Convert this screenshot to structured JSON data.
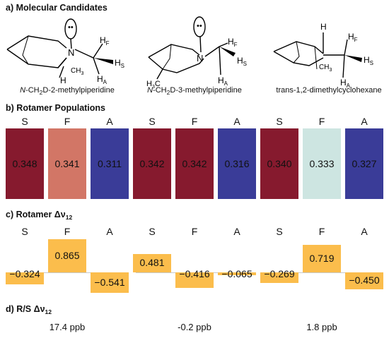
{
  "sections": {
    "a_prefix": "a)",
    "a_title": "Molecular Candidates",
    "b_prefix": "b)",
    "b_title": "Rotamer Populations",
    "c_prefix": "c)",
    "c_title_main": "Rotamer Δν",
    "c_title_sub": "12",
    "d_prefix": "d)",
    "d_title_main": "R/S Δν",
    "d_title_sub": "12"
  },
  "candidates": [
    {
      "label_prefix": "N",
      "label_rest": "-CH",
      "sub": "2",
      "label_tail": "D-2-methylpiperidine",
      "atoms": {
        "n": "N",
        "lone_pair": "••",
        "hf": "H",
        "hf_sub": "F",
        "hs": "H",
        "hs_sub": "S",
        "ha": "H",
        "ha_sub": "A",
        "h": "H",
        "ch3": "CH",
        "ch3_sub": "3"
      }
    },
    {
      "label_prefix": "N",
      "label_rest": "-CH",
      "sub": "2",
      "label_tail": "D-3-methylpiperidine",
      "atoms": {
        "n": "N",
        "lone_pair": "••",
        "hf": "H",
        "hf_sub": "F",
        "hs": "H",
        "hs_sub": "S",
        "ha": "H",
        "ha_sub": "A",
        "h3c": "H",
        "h3c_sub": "3",
        "h3c_tail": "C"
      }
    },
    {
      "label_full": "trans-1,2-dimethylcyclohexane",
      "atoms": {
        "h": "H",
        "hf": "H",
        "hf_sub": "F",
        "hs": "H",
        "hs_sub": "S",
        "ha": "H",
        "ha_sub": "A",
        "ch3": "CH",
        "ch3_sub": "3"
      }
    }
  ],
  "rotamer_letters": [
    "S",
    "F",
    "A"
  ],
  "colors": {
    "high": "#861a2e",
    "mid": "#d27666",
    "low": "#3a3c98",
    "pale": "#cde5e1",
    "dv_bar": "#fbbd4c"
  },
  "populations": [
    {
      "bars": [
        {
          "rotamer": "S",
          "value": "0.348",
          "color": "#861a2e"
        },
        {
          "rotamer": "F",
          "value": "0.341",
          "color": "#d27666"
        },
        {
          "rotamer": "A",
          "value": "0.311",
          "color": "#3a3c98"
        }
      ]
    },
    {
      "bars": [
        {
          "rotamer": "S",
          "value": "0.342",
          "color": "#861a2e"
        },
        {
          "rotamer": "F",
          "value": "0.342",
          "color": "#861a2e"
        },
        {
          "rotamer": "A",
          "value": "0.316",
          "color": "#3a3c98"
        }
      ]
    },
    {
      "bars": [
        {
          "rotamer": "S",
          "value": "0.340",
          "color": "#861a2e"
        },
        {
          "rotamer": "F",
          "value": "0.333",
          "color": "#cde5e1"
        },
        {
          "rotamer": "A",
          "value": "0.327",
          "color": "#3a3c98"
        }
      ]
    }
  ],
  "delta_nu": [
    {
      "bars": [
        {
          "rotamer": "S",
          "label": "−0.324",
          "value": -0.324
        },
        {
          "rotamer": "F",
          "label": "0.865",
          "value": 0.865
        },
        {
          "rotamer": "A",
          "label": "−0.541",
          "value": -0.541
        }
      ]
    },
    {
      "bars": [
        {
          "rotamer": "S",
          "label": "0.481",
          "value": 0.481
        },
        {
          "rotamer": "F",
          "label": "−0.416",
          "value": -0.416
        },
        {
          "rotamer": "A",
          "label": "−0.065",
          "value": -0.065
        }
      ]
    },
    {
      "bars": [
        {
          "rotamer": "S",
          "label": "−0.269",
          "value": -0.269
        },
        {
          "rotamer": "F",
          "label": "0.719",
          "value": 0.719
        },
        {
          "rotamer": "A",
          "label": "−0.450",
          "value": -0.45
        }
      ]
    }
  ],
  "rs_delta_nu": [
    "17.4 ppb",
    "-0.2 ppb",
    "1.8 ppb"
  ]
}
